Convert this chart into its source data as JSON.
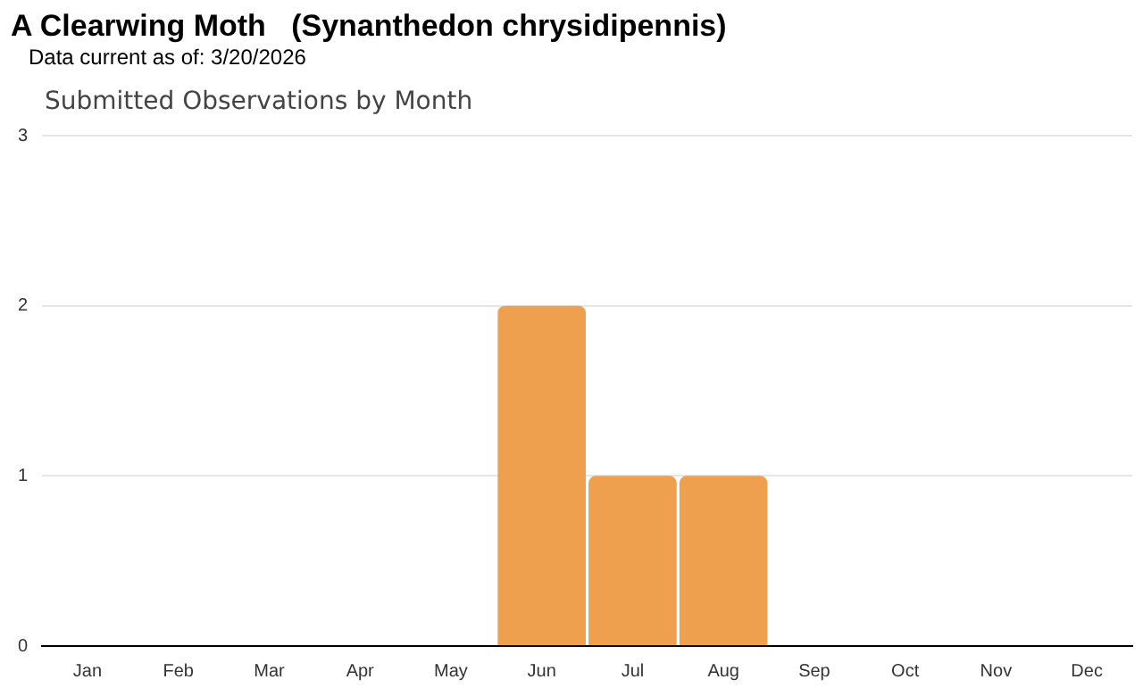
{
  "chart_data": {
    "type": "bar",
    "title": "A Clearwing Moth   (Synanthedon chrysidipennis)",
    "subtitle": "Data current as of: 3/20/2026",
    "annotations": [
      "Submitted Observations by Month"
    ],
    "categories": [
      "Jan",
      "Feb",
      "Mar",
      "Apr",
      "May",
      "Jun",
      "Jul",
      "Aug",
      "Sep",
      "Oct",
      "Nov",
      "Dec"
    ],
    "values": [
      0,
      0,
      0,
      0,
      0,
      2,
      1,
      1,
      0,
      0,
      0,
      0
    ],
    "color": "#eea04e",
    "ylim": [
      0,
      3
    ],
    "yticks": [
      0,
      1,
      2,
      3
    ],
    "grid": "y",
    "legend": false
  }
}
